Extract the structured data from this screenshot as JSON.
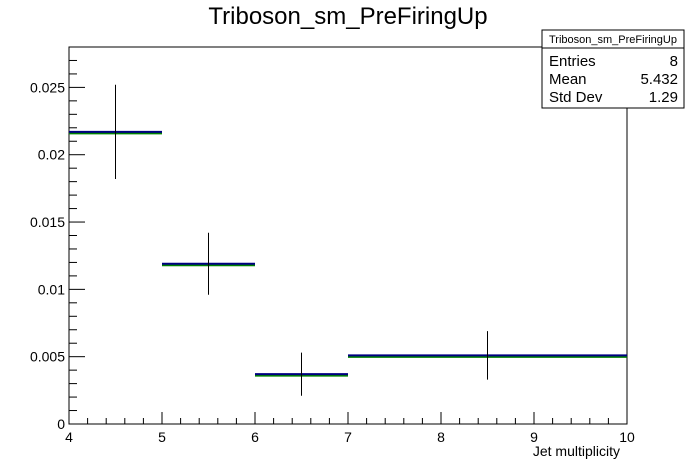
{
  "chart_data": {
    "type": "histogram",
    "title": "Triboson_sm_PreFiringUp",
    "xlabel": "Jet multiplicity",
    "ylabel": "",
    "xlim": [
      4,
      10
    ],
    "ylim": [
      0,
      0.028
    ],
    "x_ticks": [
      "4",
      "5",
      "6",
      "7",
      "8",
      "9",
      "10"
    ],
    "y_ticks": [
      "0",
      "0.005",
      "0.01",
      "0.015",
      "0.02",
      "0.025"
    ],
    "y_tick_values": [
      0,
      0.005,
      0.01,
      0.015,
      0.02,
      0.025
    ],
    "bins": [
      {
        "x_low": 4,
        "x_high": 5,
        "x_center": 4.5,
        "y": 0.0217,
        "y_err": 0.0035
      },
      {
        "x_low": 5,
        "x_high": 6,
        "x_center": 5.5,
        "y": 0.0119,
        "y_err": 0.0023
      },
      {
        "x_low": 6,
        "x_high": 7,
        "x_center": 6.5,
        "y": 0.0037,
        "y_err": 0.0016
      },
      {
        "x_low": 7,
        "x_high": 10,
        "x_center": 8.5,
        "y": 0.0051,
        "y_err": 0.0018
      }
    ],
    "overlay_colors": [
      "#008000",
      "#000080"
    ],
    "stats_box": {
      "title": "Triboson_sm_PreFiringUp",
      "rows": [
        {
          "label": "Entries",
          "value": "8"
        },
        {
          "label": "Mean",
          "value": "5.432"
        },
        {
          "label": "Std Dev",
          "value": "1.29"
        }
      ]
    },
    "grid": false
  }
}
